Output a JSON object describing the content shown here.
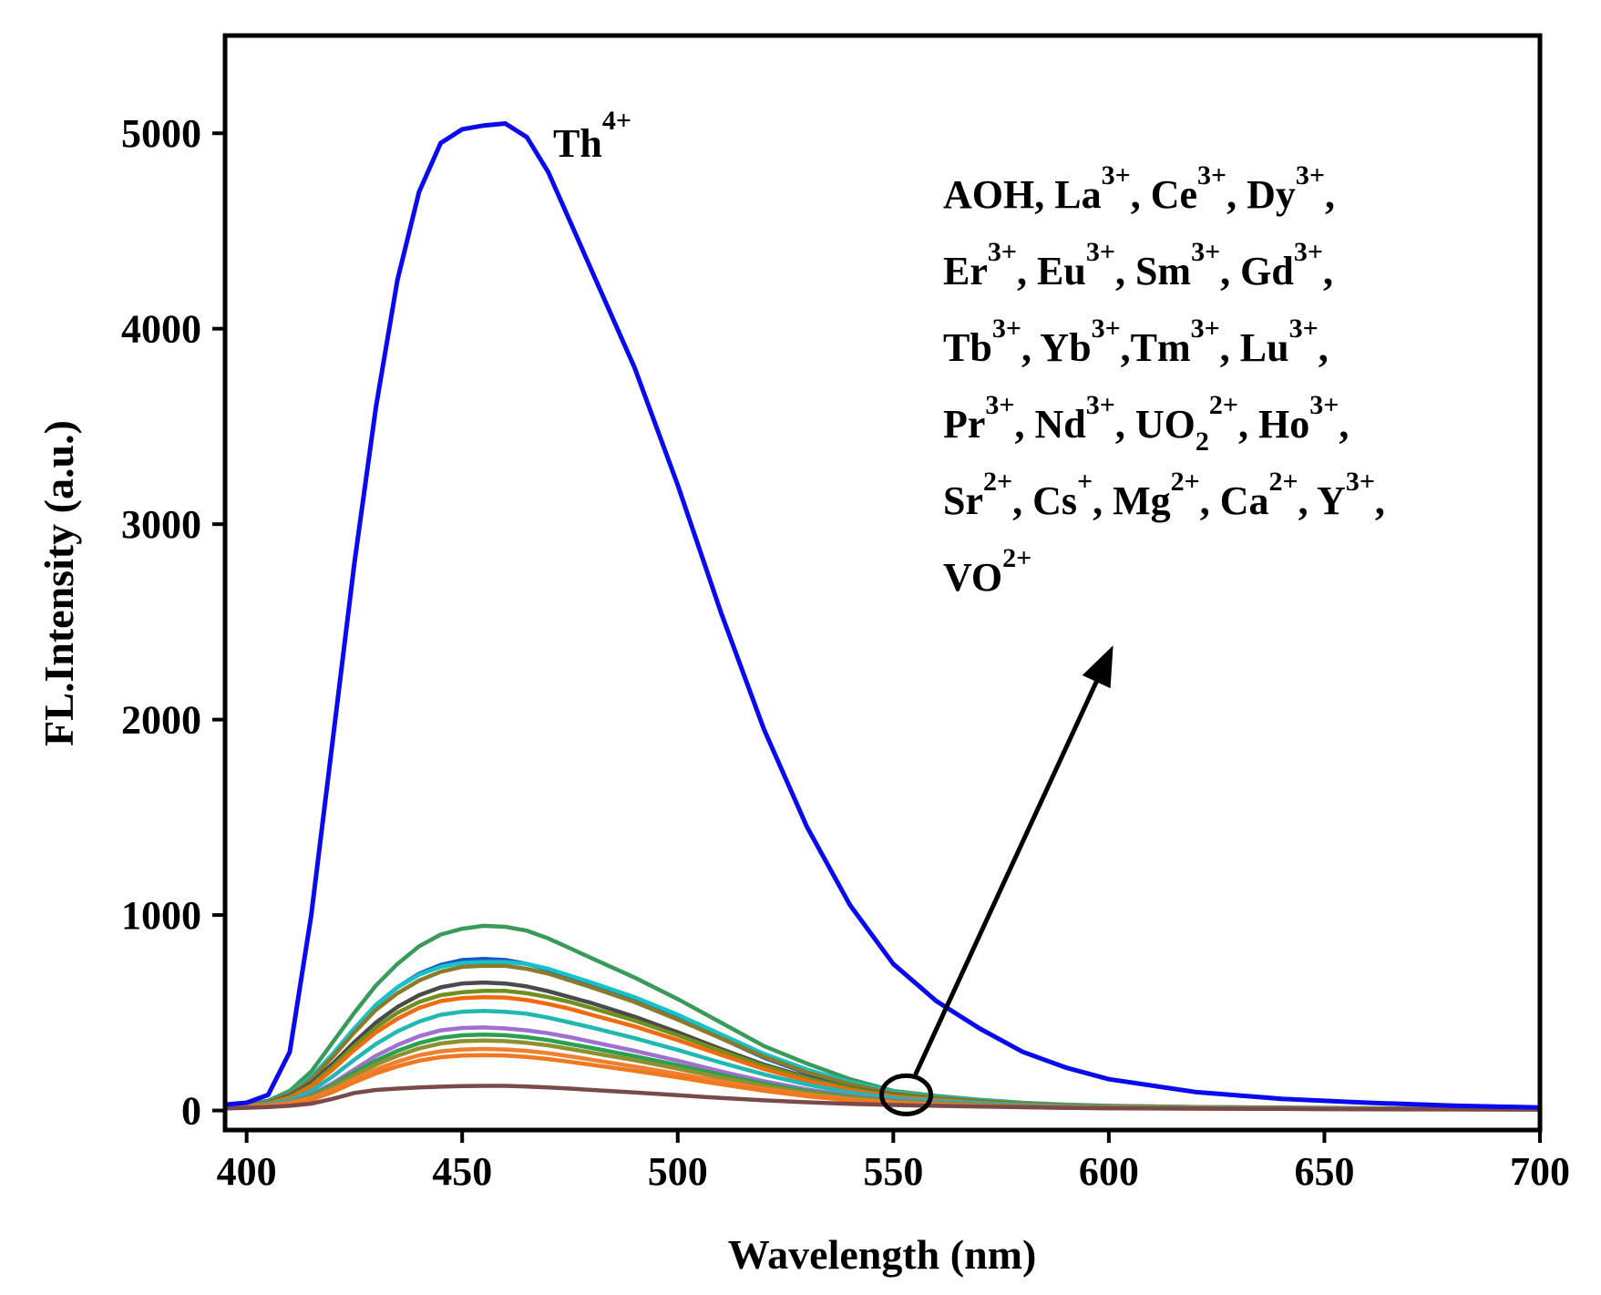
{
  "chart_data": {
    "type": "line",
    "xlabel": "Wavelength (nm)",
    "ylabel": "FL.Intensity (a.u.)",
    "xlim": [
      395,
      700
    ],
    "ylim": [
      -100,
      5500
    ],
    "xticks": [
      400,
      450,
      500,
      550,
      600,
      650,
      700
    ],
    "yticks": [
      0,
      1000,
      2000,
      3000,
      4000,
      5000
    ],
    "x": [
      395,
      400,
      405,
      410,
      415,
      420,
      425,
      430,
      435,
      440,
      445,
      450,
      455,
      460,
      465,
      470,
      475,
      480,
      490,
      500,
      510,
      520,
      530,
      540,
      550,
      560,
      570,
      580,
      590,
      600,
      620,
      640,
      660,
      680,
      700
    ],
    "series": [
      {
        "name": "Th4+",
        "color": "#0a0aef",
        "values": [
          30,
          40,
          80,
          300,
          1000,
          1900,
          2800,
          3600,
          4250,
          4700,
          4950,
          5020,
          5040,
          5050,
          4980,
          4800,
          4550,
          4300,
          3800,
          3200,
          2550,
          1950,
          1450,
          1050,
          750,
          560,
          420,
          300,
          220,
          160,
          95,
          60,
          40,
          25,
          15
        ]
      },
      {
        "name": "s01",
        "color": "#3a9a5a",
        "values": [
          20,
          30,
          50,
          100,
          200,
          350,
          500,
          640,
          750,
          840,
          900,
          930,
          945,
          940,
          920,
          880,
          830,
          780,
          680,
          570,
          450,
          330,
          240,
          160,
          100,
          75,
          55,
          40,
          30,
          24,
          18,
          15,
          12,
          10,
          8
        ]
      },
      {
        "name": "s02",
        "color": "#1a55c8",
        "values": [
          20,
          30,
          45,
          90,
          170,
          290,
          420,
          540,
          630,
          700,
          745,
          770,
          775,
          770,
          750,
          720,
          680,
          640,
          560,
          470,
          370,
          270,
          190,
          130,
          85,
          65,
          48,
          35,
          27,
          22,
          17,
          14,
          11,
          9,
          8
        ]
      },
      {
        "name": "s03",
        "color": "#16c1c8",
        "values": [
          20,
          30,
          45,
          90,
          170,
          290,
          420,
          540,
          630,
          695,
          735,
          755,
          760,
          760,
          750,
          725,
          690,
          655,
          580,
          490,
          390,
          290,
          210,
          145,
          95,
          72,
          52,
          38,
          29,
          23,
          18,
          14,
          11,
          9,
          8
        ]
      },
      {
        "name": "s04",
        "color": "#8a7a2a",
        "values": [
          20,
          28,
          42,
          85,
          160,
          275,
          400,
          515,
          600,
          665,
          710,
          735,
          740,
          740,
          725,
          700,
          665,
          630,
          555,
          465,
          370,
          275,
          195,
          135,
          88,
          66,
          48,
          35,
          27,
          22,
          17,
          14,
          11,
          9,
          8
        ]
      },
      {
        "name": "s05",
        "color": "#4a4a4a",
        "values": [
          18,
          26,
          38,
          75,
          140,
          240,
          350,
          450,
          530,
          590,
          630,
          650,
          655,
          650,
          635,
          610,
          580,
          550,
          480,
          400,
          315,
          235,
          170,
          115,
          78,
          58,
          43,
          32,
          25,
          20,
          16,
          13,
          10,
          9,
          7
        ]
      },
      {
        "name": "s06",
        "color": "#6f8f1f",
        "values": [
          18,
          25,
          36,
          70,
          130,
          225,
          330,
          425,
          500,
          555,
          590,
          605,
          612,
          612,
          600,
          580,
          555,
          525,
          460,
          385,
          305,
          228,
          165,
          112,
          76,
          57,
          42,
          31,
          24,
          20,
          16,
          13,
          10,
          9,
          7
        ]
      },
      {
        "name": "s07",
        "color": "#f06a10",
        "values": [
          18,
          25,
          35,
          65,
          120,
          210,
          310,
          400,
          470,
          525,
          560,
          575,
          580,
          578,
          565,
          545,
          520,
          490,
          430,
          360,
          285,
          212,
          152,
          104,
          70,
          53,
          39,
          29,
          23,
          19,
          15,
          12,
          10,
          8,
          7
        ]
      },
      {
        "name": "s08",
        "color": "#20b8b0",
        "values": [
          16,
          22,
          30,
          55,
          100,
          175,
          260,
          340,
          405,
          455,
          490,
          505,
          510,
          505,
          495,
          475,
          450,
          425,
          370,
          310,
          245,
          185,
          133,
          92,
          63,
          48,
          36,
          27,
          21,
          17,
          14,
          11,
          9,
          8,
          6
        ]
      },
      {
        "name": "s09",
        "color": "#a070d0",
        "values": [
          15,
          20,
          27,
          45,
          80,
          140,
          210,
          280,
          335,
          380,
          410,
          422,
          425,
          420,
          410,
          395,
          375,
          352,
          305,
          255,
          200,
          150,
          108,
          75,
          52,
          40,
          30,
          23,
          18,
          15,
          12,
          10,
          8,
          7,
          6
        ]
      },
      {
        "name": "s10",
        "color": "#2aa050",
        "values": [
          15,
          20,
          26,
          42,
          75,
          130,
          195,
          255,
          305,
          345,
          372,
          385,
          388,
          385,
          375,
          360,
          340,
          320,
          278,
          232,
          182,
          137,
          99,
          69,
          48,
          37,
          28,
          21,
          17,
          14,
          11,
          9,
          8,
          7,
          6
        ]
      },
      {
        "name": "s11",
        "color": "#909030",
        "values": [
          14,
          19,
          25,
          40,
          70,
          120,
          180,
          235,
          280,
          318,
          343,
          355,
          358,
          355,
          346,
          333,
          315,
          296,
          257,
          214,
          168,
          126,
          91,
          64,
          45,
          35,
          26,
          20,
          16,
          13,
          11,
          9,
          7,
          6,
          5
        ]
      },
      {
        "name": "s12",
        "color": "#f08030",
        "values": [
          14,
          18,
          24,
          38,
          62,
          105,
          160,
          210,
          250,
          283,
          303,
          312,
          315,
          312,
          305,
          293,
          277,
          260,
          225,
          188,
          148,
          111,
          80,
          57,
          40,
          31,
          24,
          18,
          15,
          12,
          10,
          8,
          7,
          6,
          5
        ]
      },
      {
        "name": "s13",
        "color": "#f07820",
        "values": [
          13,
          17,
          22,
          34,
          55,
          95,
          145,
          190,
          226,
          255,
          273,
          281,
          283,
          281,
          274,
          263,
          249,
          234,
          203,
          170,
          134,
          101,
          73,
          52,
          37,
          29,
          22,
          17,
          14,
          11,
          9,
          8,
          6,
          5,
          5
        ]
      },
      {
        "name": "s14",
        "color": "#7a4a4a",
        "values": [
          10,
          14,
          18,
          24,
          35,
          60,
          90,
          105,
          112,
          118,
          122,
          125,
          126,
          126,
          123,
          118,
          112,
          105,
          92,
          78,
          64,
          52,
          42,
          34,
          28,
          24,
          20,
          17,
          14,
          12,
          10,
          8,
          7,
          6,
          5
        ]
      }
    ],
    "annotations": {
      "th_label": {
        "base": "Th",
        "sup": "4+"
      },
      "ion_list": [
        [
          {
            "t": "AOH, La"
          },
          {
            "s": "3+"
          },
          {
            "t": ", Ce"
          },
          {
            "s": "3+"
          },
          {
            "t": ", Dy"
          },
          {
            "s": "3+"
          },
          {
            "t": ","
          }
        ],
        [
          {
            "t": "Er"
          },
          {
            "s": "3+"
          },
          {
            "t": ", Eu"
          },
          {
            "s": "3+"
          },
          {
            "t": ", Sm"
          },
          {
            "s": "3+"
          },
          {
            "t": ", Gd"
          },
          {
            "s": "3+"
          },
          {
            "t": ","
          }
        ],
        [
          {
            "t": "Tb"
          },
          {
            "s": "3+"
          },
          {
            "t": ", Yb"
          },
          {
            "s": "3+"
          },
          {
            "t": ",Tm"
          },
          {
            "s": "3+"
          },
          {
            "t": ", Lu"
          },
          {
            "s": "3+"
          },
          {
            "t": ","
          }
        ],
        [
          {
            "t": "Pr"
          },
          {
            "s": "3+"
          },
          {
            "t": ", Nd"
          },
          {
            "s": "3+"
          },
          {
            "t": ", UO"
          },
          {
            "b": "2"
          },
          {
            "s": "2+"
          },
          {
            "t": ", Ho"
          },
          {
            "s": "3+"
          },
          {
            "t": ","
          }
        ],
        [
          {
            "t": "Sr"
          },
          {
            "s": "2+"
          },
          {
            "t": ", Cs"
          },
          {
            "s": "+"
          },
          {
            "t": ", Mg"
          },
          {
            "s": "2+"
          },
          {
            "t": ", Ca"
          },
          {
            "s": "2+"
          },
          {
            "t": ", Y"
          },
          {
            "s": "3+"
          },
          {
            "t": ","
          }
        ],
        [
          {
            "t": "VO"
          },
          {
            "s": "2+"
          }
        ]
      ],
      "arrow_from": {
        "x": 553,
        "y": 80
      },
      "arrow_to": {
        "x": 601,
        "y": 2380
      }
    }
  }
}
